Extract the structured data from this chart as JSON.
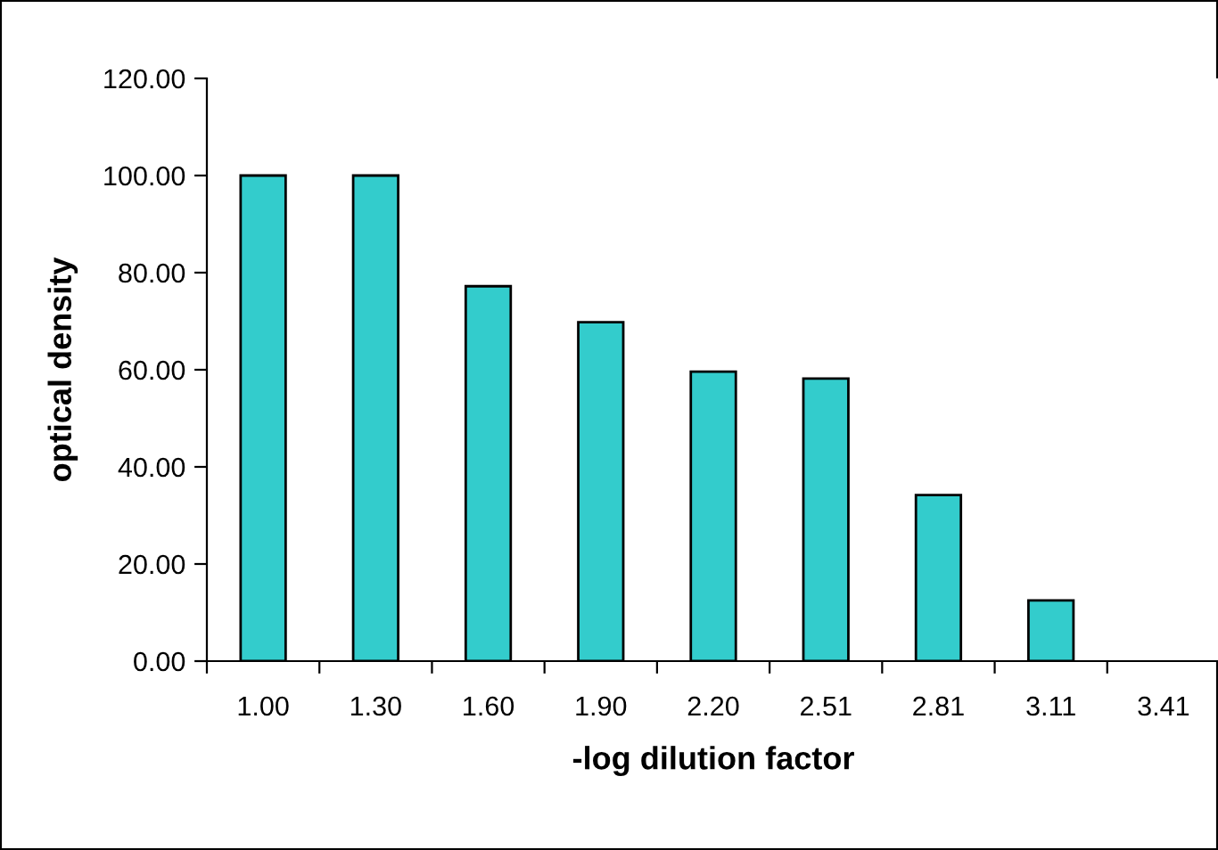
{
  "chart_data": {
    "type": "bar",
    "xlabel": "-log dilution factor",
    "ylabel": "optical density",
    "categories": [
      "1.00",
      "1.30",
      "1.60",
      "1.90",
      "2.20",
      "2.51",
      "2.81",
      "3.11",
      "3.41"
    ],
    "values": [
      100,
      100,
      77.2,
      69.8,
      59.6,
      58.2,
      34.2,
      12.5,
      0
    ],
    "color": "#33cccc",
    "ylim": [
      0,
      120
    ],
    "yticks": [
      {
        "value": 0,
        "label": "0.00"
      },
      {
        "value": 20,
        "label": "20.00"
      },
      {
        "value": 40,
        "label": "40.00"
      },
      {
        "value": 60,
        "label": "60.00"
      },
      {
        "value": 80,
        "label": "80.00"
      },
      {
        "value": 100,
        "label": "100.00"
      },
      {
        "value": 120,
        "label": "120.00"
      }
    ],
    "grid": false,
    "legend": false
  }
}
